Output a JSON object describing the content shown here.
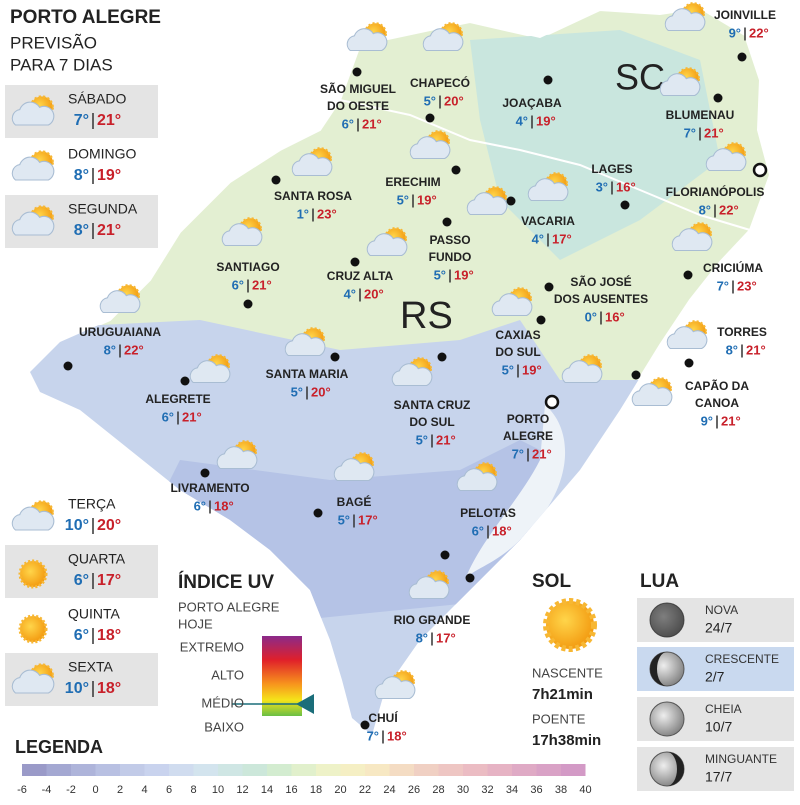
{
  "header": {
    "title": "PORTO ALEGRE",
    "subtitle": [
      "PREVISÃO",
      "PARA 7 DIAS"
    ]
  },
  "forecast": [
    {
      "day": "SÁBADO",
      "min": "7°",
      "max": "21°",
      "icon": "partly-cloudy"
    },
    {
      "day": "DOMINGO",
      "min": "8°",
      "max": "19°",
      "icon": "partly-cloudy"
    },
    {
      "day": "SEGUNDA",
      "min": "8°",
      "max": "21°",
      "icon": "partly-cloudy"
    },
    {
      "day": "TERÇA",
      "min": "10°",
      "max": "20°",
      "icon": "partly-cloudy"
    },
    {
      "day": "QUARTA",
      "min": "6°",
      "max": "17°",
      "icon": "sun"
    },
    {
      "day": "QUINTA",
      "min": "6°",
      "max": "18°",
      "icon": "sun"
    },
    {
      "day": "SEXTA",
      "min": "10°",
      "max": "18°",
      "icon": "partly-cloudy"
    }
  ],
  "states": [
    "SC",
    "RS"
  ],
  "cities": [
    {
      "name": [
        "SÃO MIGUEL",
        "DO OESTE"
      ],
      "min": "6°",
      "max": "21°"
    },
    {
      "name": [
        "CHAPECÓ"
      ],
      "min": "5°",
      "max": "20°"
    },
    {
      "name": [
        "JOAÇABA"
      ],
      "min": "4°",
      "max": "19°"
    },
    {
      "name": [
        "JOINVILLE"
      ],
      "min": "9°",
      "max": "22°"
    },
    {
      "name": [
        "BLUMENAU"
      ],
      "min": "7°",
      "max": "21°"
    },
    {
      "name": [
        "LAGES"
      ],
      "min": "3°",
      "max": "16°"
    },
    {
      "name": [
        "FLORIANÓPOLIS"
      ],
      "min": "8°",
      "max": "22°"
    },
    {
      "name": [
        "SANTA ROSA"
      ],
      "min": "1°",
      "max": "23°"
    },
    {
      "name": [
        "ERECHIM"
      ],
      "min": "5°",
      "max": "19°"
    },
    {
      "name": [
        "VACARIA"
      ],
      "min": "4°",
      "max": "17°"
    },
    {
      "name": [
        "PASSO",
        "FUNDO"
      ],
      "min": "5°",
      "max": "19°"
    },
    {
      "name": [
        "SANTIAGO"
      ],
      "min": "6°",
      "max": "21°"
    },
    {
      "name": [
        "CRUZ ALTA"
      ],
      "min": "4°",
      "max": "20°"
    },
    {
      "name": [
        "CRICIÚMA"
      ],
      "min": "7°",
      "max": "23°"
    },
    {
      "name": [
        "SÃO JOSÉ",
        "DOS AUSENTES"
      ],
      "min": "0°",
      "max": "16°"
    },
    {
      "name": [
        "URUGUAIANA"
      ],
      "min": "8°",
      "max": "22°"
    },
    {
      "name": [
        "TORRES"
      ],
      "min": "8°",
      "max": "21°"
    },
    {
      "name": [
        "CAXIAS",
        "DO SUL"
      ],
      "min": "5°",
      "max": "19°"
    },
    {
      "name": [
        "SANTA MARIA"
      ],
      "min": "5°",
      "max": "20°"
    },
    {
      "name": [
        "ALEGRETE"
      ],
      "min": "6°",
      "max": "21°"
    },
    {
      "name": [
        "SANTA CRUZ",
        "DO SUL"
      ],
      "min": "5°",
      "max": "21°"
    },
    {
      "name": [
        "PORTO",
        "ALEGRE"
      ],
      "min": "7°",
      "max": "21°"
    },
    {
      "name": [
        "CAPÃO DA",
        "CANOA"
      ],
      "min": "9°",
      "max": "21°"
    },
    {
      "name": [
        "LIVRAMENTO"
      ],
      "min": "6°",
      "max": "18°"
    },
    {
      "name": [
        "BAGÉ"
      ],
      "min": "5°",
      "max": "17°"
    },
    {
      "name": [
        "PELOTAS"
      ],
      "min": "6°",
      "max": "18°"
    },
    {
      "name": [
        "RIO GRANDE"
      ],
      "min": "8°",
      "max": "17°"
    },
    {
      "name": [
        "CHUÍ"
      ],
      "min": "7°",
      "max": "18°"
    }
  ],
  "uv": {
    "title": "ÍNDICE UV",
    "subtitle": [
      "PORTO ALEGRE",
      "HOJE"
    ],
    "levels": [
      "EXTREMO",
      "ALTO",
      "MÉDIO",
      "BAIXO"
    ]
  },
  "sun": {
    "title": "SOL",
    "sunrise_label": "NASCENTE",
    "sunrise": "7h21min",
    "sunset_label": "POENTE",
    "sunset": "17h38min"
  },
  "moon": {
    "title": "LUA",
    "phases": [
      {
        "name": "NOVA",
        "date": "24/7"
      },
      {
        "name": "CRESCENTE",
        "date": "2/7"
      },
      {
        "name": "CHEIA",
        "date": "10/7"
      },
      {
        "name": "MINGUANTE",
        "date": "17/7"
      }
    ]
  },
  "legend": {
    "title": "LEGENDA",
    "scale": [
      -6,
      -4,
      -2,
      0,
      2,
      4,
      6,
      8,
      10,
      12,
      14,
      16,
      18,
      20,
      22,
      24,
      26,
      28,
      30,
      32,
      34,
      36,
      38,
      40
    ]
  }
}
